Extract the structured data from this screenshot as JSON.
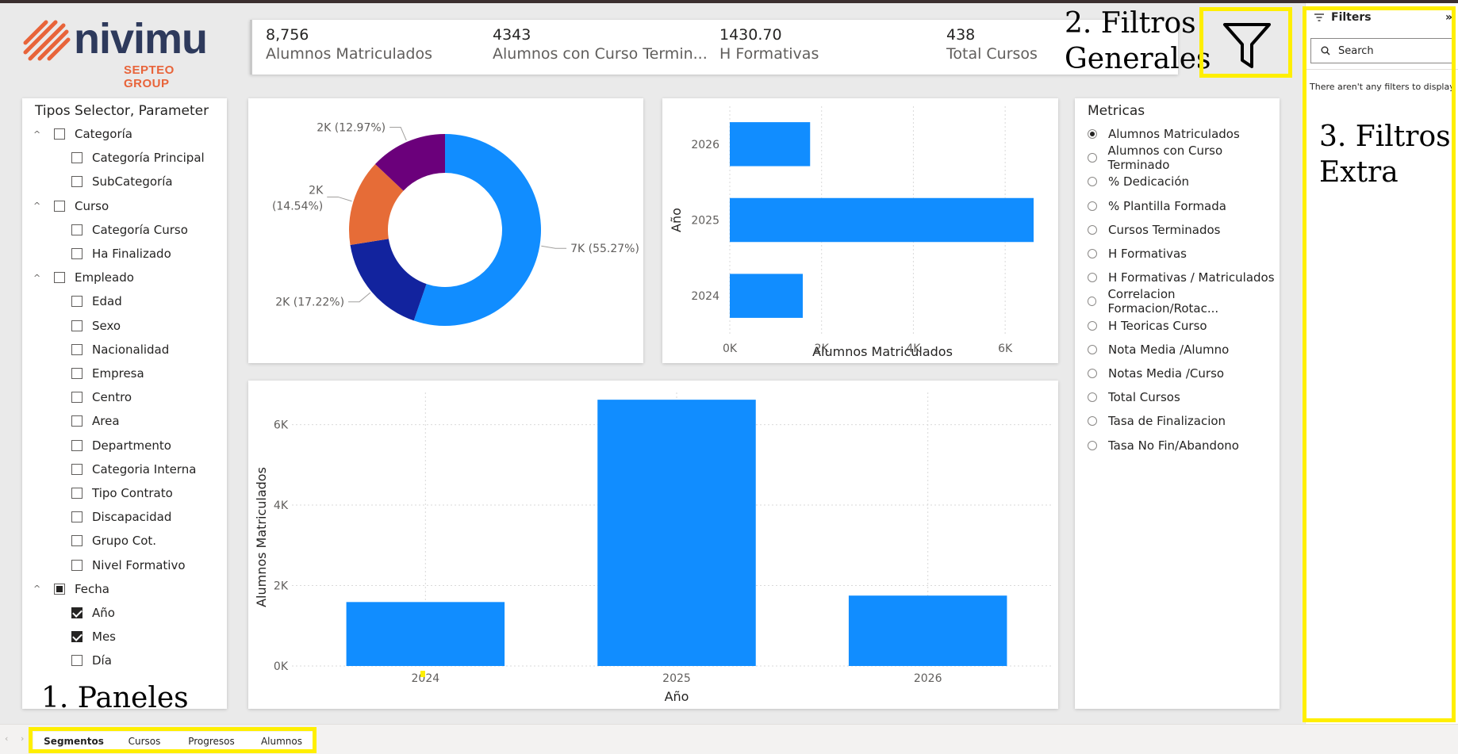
{
  "logo": {
    "name": "nivimu",
    "sub": "SEPTEO GROUP"
  },
  "kpis": [
    {
      "value": "8,756",
      "label": "Alumnos Matriculados"
    },
    {
      "value": "4343",
      "label": "Alumnos con Curso Termin..."
    },
    {
      "value": "1430.70",
      "label": "H Formativas"
    },
    {
      "value": "438",
      "label": "Total Cursos"
    }
  ],
  "annotations": {
    "filtros_generales_line1": "2. Filtros",
    "filtros_generales_line2": "Generales",
    "filtros_extra_line1": "3. Filtros",
    "filtros_extra_line2": "Extra",
    "paneles": "1. Paneles"
  },
  "selector": {
    "title": "Tipos Selector, Parameter",
    "items": [
      {
        "label": "Categoría",
        "level": 0,
        "state": "unchecked",
        "expanded": true
      },
      {
        "label": "Categoría Principal",
        "level": 1,
        "state": "unchecked"
      },
      {
        "label": "SubCategoría",
        "level": 1,
        "state": "unchecked"
      },
      {
        "label": "Curso",
        "level": 0,
        "state": "unchecked",
        "expanded": true
      },
      {
        "label": "Categoría Curso",
        "level": 1,
        "state": "unchecked"
      },
      {
        "label": "Ha Finalizado",
        "level": 1,
        "state": "unchecked"
      },
      {
        "label": "Empleado",
        "level": 0,
        "state": "unchecked",
        "expanded": true
      },
      {
        "label": "Edad",
        "level": 1,
        "state": "unchecked"
      },
      {
        "label": "Sexo",
        "level": 1,
        "state": "unchecked"
      },
      {
        "label": "Nacionalidad",
        "level": 1,
        "state": "unchecked"
      },
      {
        "label": "Empresa",
        "level": 1,
        "state": "unchecked"
      },
      {
        "label": "Centro",
        "level": 1,
        "state": "unchecked"
      },
      {
        "label": "Area",
        "level": 1,
        "state": "unchecked"
      },
      {
        "label": "Departmento",
        "level": 1,
        "state": "unchecked"
      },
      {
        "label": "Categoria Interna",
        "level": 1,
        "state": "unchecked"
      },
      {
        "label": "Tipo Contrato",
        "level": 1,
        "state": "unchecked"
      },
      {
        "label": "Discapacidad",
        "level": 1,
        "state": "unchecked"
      },
      {
        "label": "Grupo Cot.",
        "level": 1,
        "state": "unchecked"
      },
      {
        "label": "Nivel Formativo",
        "level": 1,
        "state": "unchecked"
      },
      {
        "label": "Fecha",
        "level": 0,
        "state": "partial",
        "expanded": true
      },
      {
        "label": "Año",
        "level": 1,
        "state": "checked"
      },
      {
        "label": "Mes",
        "level": 1,
        "state": "checked"
      },
      {
        "label": "Día",
        "level": 1,
        "state": "unchecked"
      }
    ]
  },
  "metrics": {
    "title": "Metricas",
    "options": [
      {
        "label": "Alumnos Matriculados",
        "selected": true
      },
      {
        "label": "Alumnos con Curso Terminado",
        "selected": false
      },
      {
        "label": "% Dedicación",
        "selected": false
      },
      {
        "label": "% Plantilla Formada",
        "selected": false
      },
      {
        "label": "Cursos Terminados",
        "selected": false
      },
      {
        "label": "H Formativas",
        "selected": false
      },
      {
        "label": "H Formativas / Matriculados",
        "selected": false
      },
      {
        "label": "Correlacion Formacion/Rotac...",
        "selected": false
      },
      {
        "label": "H Teoricas Curso",
        "selected": false
      },
      {
        "label": "Nota Media /Alumno",
        "selected": false
      },
      {
        "label": "Notas Media /Curso",
        "selected": false
      },
      {
        "label": "Total Cursos",
        "selected": false
      },
      {
        "label": "Tasa de Finalizacion",
        "selected": false
      },
      {
        "label": "Tasa No Fin/Abandono",
        "selected": false
      }
    ]
  },
  "filters_pane": {
    "title": "Filters",
    "search_placeholder": "Search",
    "empty_message": "There aren't any filters to display.",
    "collapse_glyph": "»"
  },
  "tabs": [
    {
      "label": "Segmentos",
      "active": true
    },
    {
      "label": "Cursos",
      "active": false
    },
    {
      "label": "Progresos",
      "active": false
    },
    {
      "label": "Alumnos",
      "active": false
    }
  ],
  "colors": {
    "accent_blue": "#118DFF",
    "dark_blue": "#12239E",
    "orange": "#E66C37",
    "purple": "#6B007B",
    "highlight_yellow": "#FFEF00",
    "logo_navy": "#2E3A5C",
    "logo_orange": "#E8643A"
  },
  "chart_data": [
    {
      "type": "pie",
      "variant": "donut",
      "title": "",
      "slices": [
        {
          "value": 55.27,
          "label": "7K (55.27%)",
          "color": "#118DFF"
        },
        {
          "value": 17.22,
          "label": "2K (17.22%)",
          "color": "#12239E"
        },
        {
          "value": 14.54,
          "label": "2K (14.54%)",
          "color": "#E66C37"
        },
        {
          "value": 12.97,
          "label": "2K (12.97%)",
          "color": "#6B007B"
        }
      ]
    },
    {
      "type": "bar",
      "orientation": "horizontal",
      "categories": [
        "2026",
        "2025",
        "2024"
      ],
      "values": [
        1750,
        6620,
        1590
      ],
      "xlabel": "Alumnos Matriculados",
      "ylabel": "Año",
      "xlim": [
        0,
        7000
      ],
      "xticks": [
        "0K",
        "2K",
        "4K",
        "6K"
      ],
      "xtick_values": [
        0,
        2000,
        4000,
        6000
      ],
      "grid": true,
      "color": "#118DFF"
    },
    {
      "type": "bar",
      "orientation": "vertical",
      "categories": [
        "2024",
        "2025",
        "2026"
      ],
      "values": [
        1590,
        6620,
        1750
      ],
      "xlabel": "Año",
      "ylabel": "Alumnos Matriculados",
      "ylim": [
        0,
        6800
      ],
      "yticks": [
        "0K",
        "2K",
        "4K",
        "6K"
      ],
      "ytick_values": [
        0,
        2000,
        4000,
        6000
      ],
      "grid": true,
      "color": "#118DFF"
    }
  ]
}
